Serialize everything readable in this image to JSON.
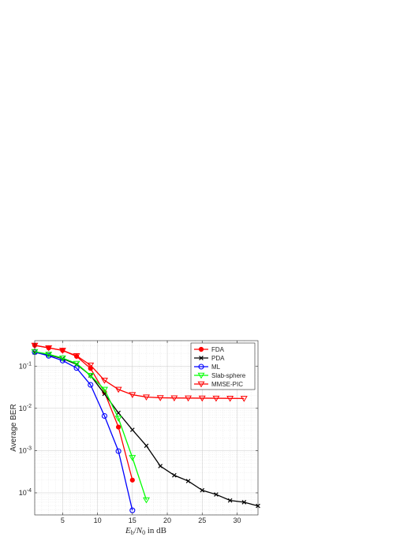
{
  "chart_data": {
    "type": "line",
    "xlabel": "E_b/N_0 in dB",
    "ylabel": "Average BER",
    "xlim": [
      1,
      33
    ],
    "ylim": [
      3e-05,
      0.4
    ],
    "yscale": "log",
    "grid": true,
    "legend_position": "top-right",
    "xticks": [
      5,
      10,
      15,
      20,
      25,
      30
    ],
    "xtick_labels": [
      "5",
      "10",
      "15",
      "20",
      "25",
      "30"
    ],
    "yticks": [
      0.0001,
      0.001,
      0.01,
      0.1
    ],
    "ytick_labels": [
      {
        "base": "10",
        "exp": "-4"
      },
      {
        "base": "10",
        "exp": "-3"
      },
      {
        "base": "10",
        "exp": "-2"
      },
      {
        "base": "10",
        "exp": "-1"
      }
    ],
    "series": [
      {
        "name": "FDA",
        "color": "#ff0000",
        "marker": "dot",
        "x": [
          1,
          3,
          5,
          7,
          9,
          11,
          13,
          15
        ],
        "y": [
          0.31,
          0.27,
          0.235,
          0.17,
          0.088,
          0.024,
          0.0036,
          0.0002
        ]
      },
      {
        "name": "PDA",
        "color": "#000000",
        "marker": "x",
        "x": [
          1,
          3,
          5,
          7,
          9,
          11,
          13,
          15,
          17,
          19,
          21,
          23,
          25,
          27,
          29,
          31,
          33
        ],
        "y": [
          0.21,
          0.185,
          0.15,
          0.11,
          0.06,
          0.022,
          0.0078,
          0.0031,
          0.0013,
          0.00043,
          0.00026,
          0.00019,
          0.000115,
          9.15e-05,
          6.6e-05,
          6e-05,
          4.9e-05
        ]
      },
      {
        "name": "ML",
        "color": "#0000ff",
        "marker": "circle",
        "x": [
          1,
          3,
          5,
          7,
          9,
          11,
          13,
          15
        ],
        "y": [
          0.215,
          0.175,
          0.135,
          0.09,
          0.036,
          0.0066,
          0.00097,
          3.85e-05
        ]
      },
      {
        "name": "Slab-sphere",
        "color": "#00ff00",
        "marker": "triangle-down",
        "x": [
          1,
          3,
          5,
          7,
          9,
          11,
          13,
          15,
          17
        ],
        "y": [
          0.22,
          0.19,
          0.155,
          0.115,
          0.06,
          0.028,
          0.0058,
          0.00068,
          6.8e-05
        ]
      },
      {
        "name": "MMSE-PIC",
        "color": "#ff0000",
        "marker": "triangle-down",
        "x": [
          1,
          3,
          5,
          7,
          9,
          11,
          13,
          15,
          17,
          19,
          21,
          23,
          25,
          27,
          29,
          31
        ],
        "y": [
          0.31,
          0.27,
          0.235,
          0.175,
          0.105,
          0.046,
          0.028,
          0.021,
          0.0185,
          0.0178,
          0.0176,
          0.0175,
          0.0174,
          0.0173,
          0.0172,
          0.0171
        ]
      }
    ]
  }
}
